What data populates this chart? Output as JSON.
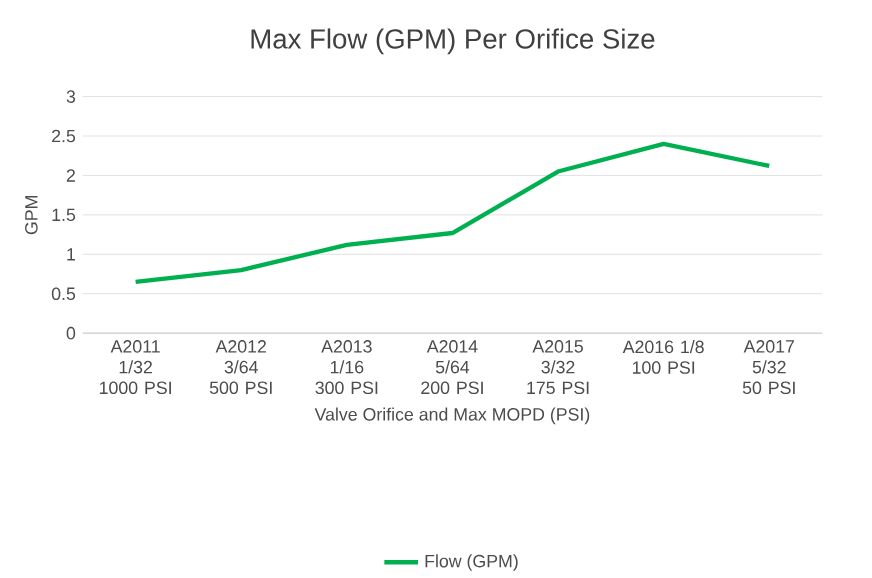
{
  "chart_data": {
    "type": "line",
    "title": "Max Flow (GPM) Per Orifice Size",
    "xlabel": "Valve Orifice and Max MOPD (PSI)",
    "ylabel": "GPM",
    "categories": [
      "A2011 1/32 1000 PSI",
      "A2012 3/64 500 PSI",
      "A2013 1/16 300 PSI",
      "A2014 5/64 200 PSI",
      "A2015 3/32 175 PSI",
      "A2016 1/8 100 PSI",
      "A2017 5/32 50 PSI"
    ],
    "series": [
      {
        "name": "Flow (GPM)",
        "color": "#00b050",
        "values": [
          0.65,
          0.8,
          1.12,
          1.27,
          2.05,
          2.4,
          2.12
        ]
      }
    ],
    "ylim": [
      0,
      3
    ],
    "yticks": [
      0,
      0.5,
      1,
      1.5,
      2,
      2.5,
      3
    ],
    "grid": "y",
    "legend": "bottom",
    "marker": "none",
    "line_style": "solid"
  }
}
